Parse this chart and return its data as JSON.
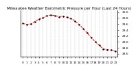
{
  "title": "Milwaukee Weather Barometric Pressure per Hour (Last 24 Hours)",
  "hours": [
    0,
    1,
    2,
    3,
    4,
    5,
    6,
    7,
    8,
    9,
    10,
    11,
    12,
    13,
    14,
    15,
    16,
    17,
    18,
    19,
    20,
    21,
    22,
    23
  ],
  "pressure": [
    29.62,
    29.58,
    29.6,
    29.68,
    29.76,
    29.8,
    29.88,
    29.9,
    29.88,
    29.84,
    29.86,
    29.82,
    29.78,
    29.7,
    29.58,
    29.45,
    29.3,
    29.15,
    29.0,
    28.88,
    28.76,
    28.74,
    28.72,
    28.68
  ],
  "line_color": "#ff0000",
  "marker_color": "#000000",
  "background_color": "#ffffff",
  "grid_color": "#888888",
  "ylim_min": 28.5,
  "ylim_max": 30.05,
  "ytick_values": [
    28.6,
    28.8,
    29.0,
    29.2,
    29.4,
    29.6,
    29.8,
    30.0
  ],
  "title_fontsize": 4.0,
  "tick_fontsize": 3.2,
  "line_width": 0.7,
  "marker_size": 1.4
}
